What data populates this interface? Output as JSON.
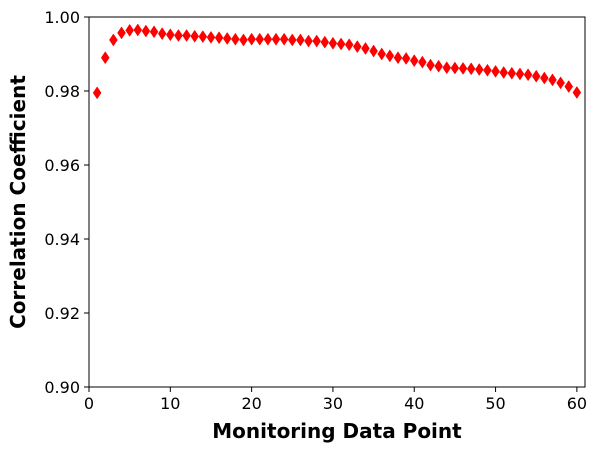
{
  "chart_data": {
    "type": "scatter",
    "title": "",
    "xlabel": "Monitoring Data Point",
    "ylabel": "Correlation Coefficient",
    "xlim": [
      0,
      61
    ],
    "ylim": [
      0.9,
      1.0
    ],
    "xticks": [
      0,
      10,
      20,
      30,
      40,
      50,
      60
    ],
    "xtick_labels": [
      "0",
      "10",
      "20",
      "30",
      "40",
      "50",
      "60"
    ],
    "yticks": [
      0.9,
      0.92,
      0.94,
      0.96,
      0.98,
      1.0
    ],
    "ytick_labels": [
      "0.90",
      "0.92",
      "0.94",
      "0.96",
      "0.98",
      "1.00"
    ],
    "grid": false,
    "marker": "diamond",
    "color": "#ff0000",
    "series": [
      {
        "x": [
          1,
          2,
          3,
          4,
          5,
          6,
          7,
          8,
          9,
          10,
          11,
          12,
          13,
          14,
          15,
          16,
          17,
          18,
          19,
          20,
          21,
          22,
          23,
          24,
          25,
          26,
          27,
          28,
          29,
          30,
          31,
          32,
          33,
          34,
          35,
          36,
          37,
          38,
          39,
          40,
          41,
          42,
          43,
          44,
          45,
          46,
          47,
          48,
          49,
          50,
          51,
          52,
          53,
          54,
          55,
          56,
          57,
          58,
          59,
          60
        ],
        "y": [
          0.9795,
          0.989,
          0.9938,
          0.9957,
          0.9964,
          0.9965,
          0.9962,
          0.996,
          0.9955,
          0.9952,
          0.995,
          0.995,
          0.9948,
          0.9947,
          0.9945,
          0.9944,
          0.9942,
          0.994,
          0.9938,
          0.994,
          0.994,
          0.994,
          0.994,
          0.994,
          0.9938,
          0.9938,
          0.9935,
          0.9935,
          0.9932,
          0.9929,
          0.9927,
          0.9925,
          0.992,
          0.9915,
          0.9908,
          0.99,
          0.9895,
          0.989,
          0.9888,
          0.9882,
          0.9878,
          0.987,
          0.9867,
          0.9863,
          0.9862,
          0.9861,
          0.986,
          0.9858,
          0.9856,
          0.9853,
          0.985,
          0.9848,
          0.9846,
          0.9844,
          0.984,
          0.9835,
          0.983,
          0.9822,
          0.9812,
          0.9796
        ]
      }
    ]
  }
}
